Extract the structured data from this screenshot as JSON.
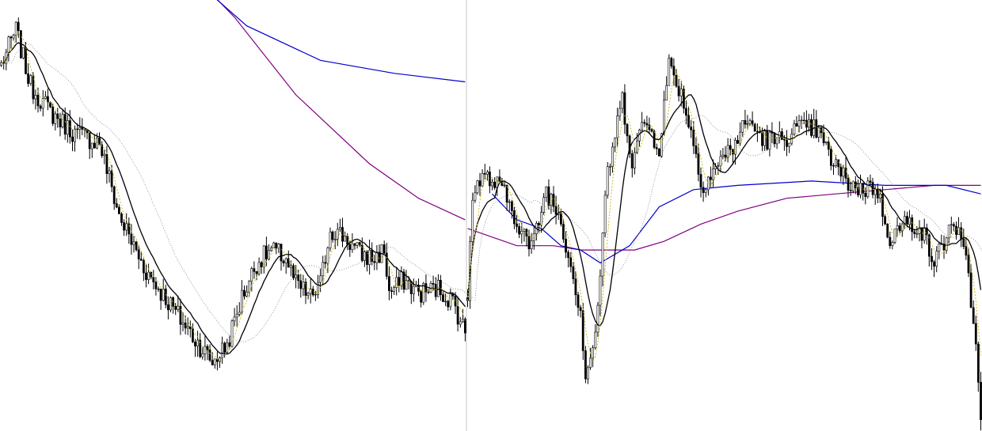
{
  "chart_data": {
    "type": "candlestick",
    "title": "",
    "xlabel": "",
    "ylabel": "",
    "grid": false,
    "legend": "none",
    "ylim": [
      0,
      100
    ],
    "bar_count": 400,
    "separator_bar": 190,
    "colors": {
      "candle": "#000000",
      "sma_fast": "#c8b400",
      "sma_mid": "#000000",
      "sma_slow": "#7f7f7f",
      "sma_blue": "#0000cc",
      "sma_purple": "#800080",
      "separator": "#c8c8c8"
    },
    "segments": [
      {
        "bar_start": 0,
        "bar_end": 189,
        "close_path": [
          [
            0,
            85
          ],
          [
            6,
            93
          ],
          [
            12,
            80
          ],
          [
            20,
            74
          ],
          [
            30,
            69
          ],
          [
            40,
            67
          ],
          [
            48,
            50
          ],
          [
            58,
            38
          ],
          [
            68,
            30
          ],
          [
            78,
            22
          ],
          [
            86,
            16
          ],
          [
            92,
            20
          ],
          [
            98,
            31
          ],
          [
            104,
            39
          ],
          [
            110,
            42
          ],
          [
            116,
            40
          ],
          [
            120,
            34
          ],
          [
            126,
            31
          ],
          [
            130,
            34
          ],
          [
            134,
            47
          ],
          [
            140,
            45
          ],
          [
            146,
            41
          ],
          [
            152,
            40
          ],
          [
            156,
            42
          ],
          [
            158,
            32
          ],
          [
            164,
            35
          ],
          [
            170,
            32
          ],
          [
            178,
            33
          ],
          [
            184,
            30
          ],
          [
            189,
            23
          ]
        ],
        "sma_blue_path": [
          [
            78,
            105
          ],
          [
            100,
            94
          ],
          [
            130,
            86
          ],
          [
            160,
            83
          ],
          [
            189,
            81
          ]
        ],
        "sma_purple_path": [
          [
            78,
            106
          ],
          [
            95,
            96
          ],
          [
            120,
            78
          ],
          [
            150,
            62
          ],
          [
            170,
            54
          ],
          [
            189,
            49
          ]
        ]
      },
      {
        "bar_start": 190,
        "bar_end": 399,
        "close_path": [
          [
            190,
            30
          ],
          [
            192,
            56
          ],
          [
            197,
            59
          ],
          [
            204,
            56
          ],
          [
            211,
            48
          ],
          [
            216,
            42
          ],
          [
            222,
            56
          ],
          [
            228,
            49
          ],
          [
            236,
            28
          ],
          [
            238,
            13
          ],
          [
            242,
            22
          ],
          [
            247,
            60
          ],
          [
            253,
            77
          ],
          [
            257,
            63
          ],
          [
            262,
            72
          ],
          [
            268,
            66
          ],
          [
            272,
            85
          ],
          [
            276,
            80
          ],
          [
            281,
            70
          ],
          [
            285,
            57
          ],
          [
            292,
            62
          ],
          [
            298,
            66
          ],
          [
            304,
            72
          ],
          [
            310,
            68
          ],
          [
            316,
            67
          ],
          [
            324,
            70
          ],
          [
            332,
            70
          ],
          [
            338,
            63
          ],
          [
            344,
            58
          ],
          [
            350,
            56
          ],
          [
            356,
            57
          ],
          [
            362,
            45
          ],
          [
            368,
            48
          ],
          [
            374,
            48
          ],
          [
            380,
            39
          ],
          [
            384,
            44
          ],
          [
            388,
            49
          ],
          [
            393,
            39
          ],
          [
            396,
            26
          ],
          [
            399,
            5
          ]
        ],
        "sma_blue_path": [
          [
            200,
            55
          ],
          [
            210,
            49
          ],
          [
            220,
            47
          ],
          [
            228,
            43
          ],
          [
            236,
            42
          ],
          [
            244,
            39
          ],
          [
            256,
            43
          ],
          [
            268,
            52
          ],
          [
            282,
            56
          ],
          [
            300,
            57
          ],
          [
            330,
            58
          ],
          [
            360,
            57
          ],
          [
            385,
            57
          ],
          [
            399,
            55
          ]
        ],
        "sma_purple_path": [
          [
            190,
            47
          ],
          [
            210,
            43
          ],
          [
            225,
            43
          ],
          [
            236,
            42
          ],
          [
            246,
            42
          ],
          [
            258,
            42
          ],
          [
            270,
            44
          ],
          [
            285,
            48
          ],
          [
            300,
            51
          ],
          [
            320,
            54
          ],
          [
            340,
            55
          ],
          [
            360,
            56
          ],
          [
            380,
            57
          ],
          [
            399,
            57
          ]
        ]
      }
    ]
  }
}
